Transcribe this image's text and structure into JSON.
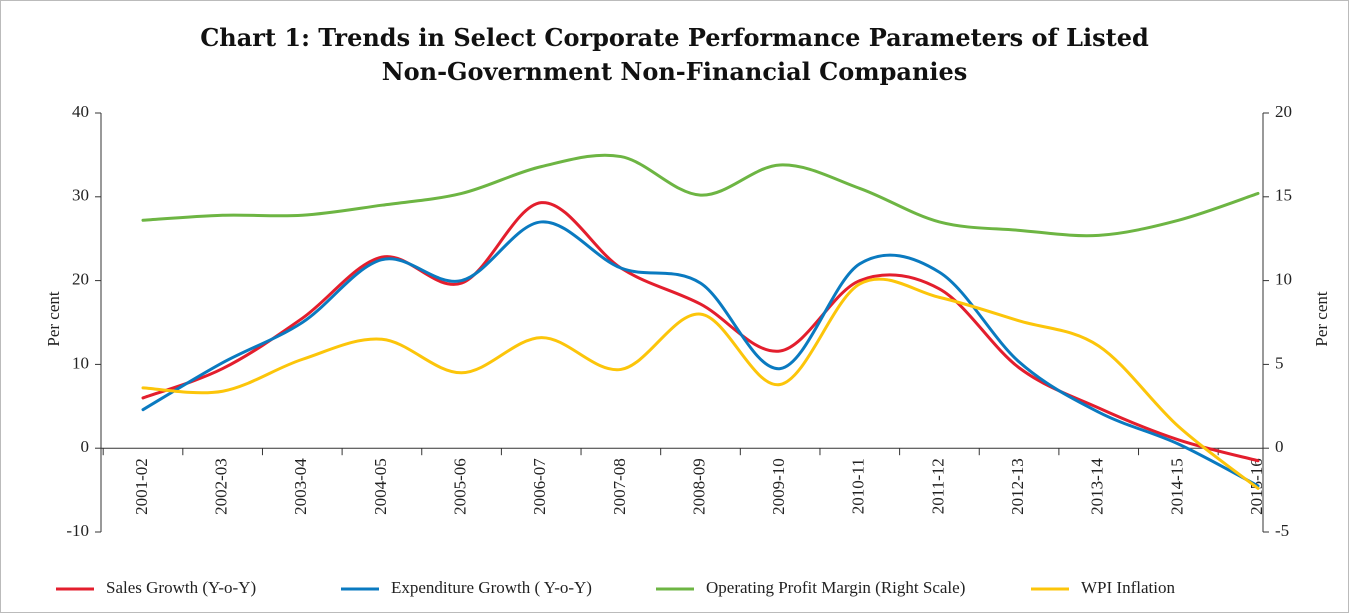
{
  "chart_data": {
    "type": "line",
    "title": "Chart 1: Trends in Select Corporate Performance Parameters of Listed Non-Government Non-Financial Companies",
    "categories": [
      "2001-02",
      "2002-03",
      "2003-04",
      "2004-05",
      "2005-06",
      "2006-07",
      "2007-08",
      "2008-09",
      "2009-10",
      "2010-11",
      "2011-12",
      "2012-13",
      "2013-14",
      "2014-15",
      "2015-16"
    ],
    "series": [
      {
        "name": "Sales Growth (Y-o-Y)",
        "color": "#e31e2d",
        "values": [
          6.0,
          9.5,
          15.5,
          22.8,
          19.7,
          29.3,
          21.5,
          17.2,
          11.6,
          20.0,
          19.0,
          9.6,
          4.8,
          1.0,
          -1.5
        ]
      },
      {
        "name": "Expenditure Growth ( Y-o-Y)",
        "color": "#0a7ac0",
        "values": [
          4.6,
          10.2,
          15.0,
          22.5,
          20.0,
          27.0,
          21.5,
          19.7,
          9.5,
          22.0,
          21.0,
          10.3,
          4.3,
          0.5,
          -4.5
        ]
      },
      {
        "name": "Operating Profit Margin (Right Scale)",
        "color": "#6db543",
        "axis": "y2",
        "values": [
          13.6,
          13.9,
          13.9,
          14.5,
          15.2,
          16.8,
          17.4,
          15.1,
          16.9,
          15.5,
          13.5,
          13.0,
          12.7,
          13.6,
          15.2
        ]
      },
      {
        "name": "WPI Inflation",
        "color": "#fcc50a",
        "values": [
          7.2,
          6.8,
          10.6,
          13.0,
          9.0,
          13.2,
          9.4,
          16.0,
          7.6,
          19.6,
          18.0,
          15.2,
          12.2,
          2.6,
          -4.8
        ]
      }
    ],
    "ylabel": "Per cent",
    "y2label": "Per cent",
    "ylim": [
      -10,
      40
    ],
    "yticks": [
      -10,
      0,
      10,
      20,
      30,
      40
    ],
    "y2lim": [
      -5,
      20
    ],
    "y2ticks": [
      -5,
      0,
      5,
      10,
      15,
      20
    ],
    "legend": "bottom"
  }
}
